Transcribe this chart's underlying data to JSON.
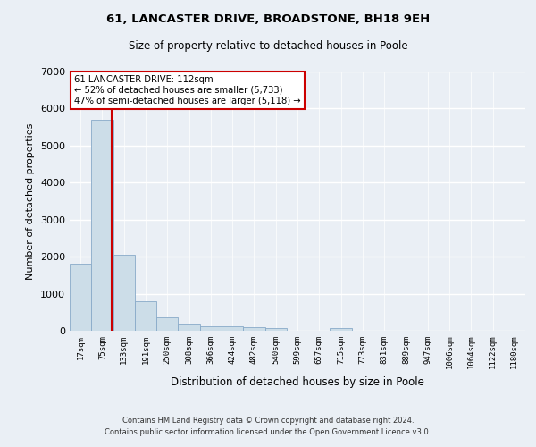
{
  "title": "61, LANCASTER DRIVE, BROADSTONE, BH18 9EH",
  "subtitle": "Size of property relative to detached houses in Poole",
  "xlabel": "Distribution of detached houses by size in Poole",
  "ylabel": "Number of detached properties",
  "bar_labels": [
    "17sqm",
    "75sqm",
    "133sqm",
    "191sqm",
    "250sqm",
    "308sqm",
    "366sqm",
    "424sqm",
    "482sqm",
    "540sqm",
    "599sqm",
    "657sqm",
    "715sqm",
    "773sqm",
    "831sqm",
    "889sqm",
    "947sqm",
    "1006sqm",
    "1064sqm",
    "1122sqm",
    "1180sqm"
  ],
  "bar_values": [
    1800,
    5700,
    2050,
    800,
    370,
    200,
    120,
    120,
    100,
    70,
    0,
    0,
    80,
    0,
    0,
    0,
    0,
    0,
    0,
    0,
    0
  ],
  "bar_color": "#ccdde8",
  "bar_edgecolor": "#88aac8",
  "ylim": [
    0,
    7000
  ],
  "yticks": [
    0,
    1000,
    2000,
    3000,
    4000,
    5000,
    6000,
    7000
  ],
  "red_line_x": 1.45,
  "annotation_line1": "61 LANCASTER DRIVE: 112sqm",
  "annotation_line2": "← 52% of detached houses are smaller (5,733)",
  "annotation_line3": "47% of semi-detached houses are larger (5,118) →",
  "annotation_box_color": "#ffffff",
  "annotation_box_edgecolor": "#cc0000",
  "footer_line1": "Contains HM Land Registry data © Crown copyright and database right 2024.",
  "footer_line2": "Contains public sector information licensed under the Open Government Licence v3.0.",
  "background_color": "#eaeff5",
  "grid_color": "#ffffff"
}
